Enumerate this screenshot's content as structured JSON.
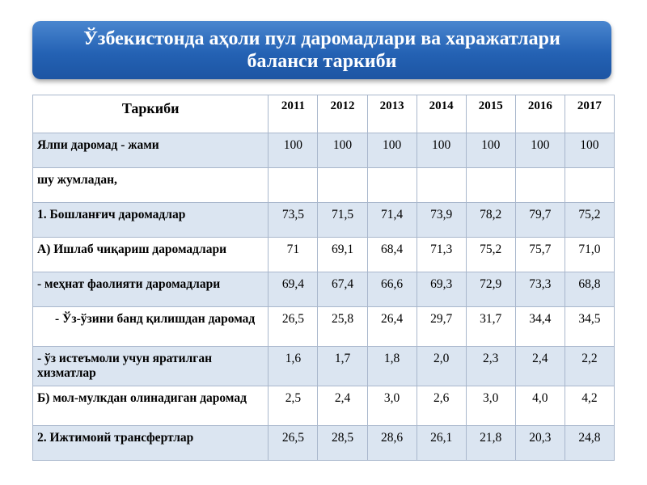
{
  "header": {
    "title": "Ўзбекистонда аҳоли пул даромадлари ва харажатлари баланси таркиби"
  },
  "table": {
    "columns": [
      "Таркиби",
      "2011",
      "2012",
      "2013",
      "2014",
      "2015",
      "2016",
      "2017"
    ],
    "rows": [
      {
        "label": "Ялпи даромад - жами",
        "values": [
          "100",
          "100",
          "100",
          "100",
          "100",
          "100",
          "100"
        ]
      },
      {
        "label": "шу жумладан,"
      },
      {
        "label": "1. Бошланғич даромадлар",
        "values": [
          "73,5",
          "71,5",
          "71,4",
          "73,9",
          "78,2",
          "79,7",
          "75,2"
        ]
      },
      {
        "label": "А) Ишлаб чиқариш даромадлари",
        "values": [
          "71",
          "69,1",
          "68,4",
          "71,3",
          "75,2",
          "75,7",
          "71,0"
        ]
      },
      {
        "label": "- меҳнат фаолияти даромадлари",
        "values": [
          "69,4",
          "67,4",
          "66,6",
          "69,3",
          "72,9",
          "73,3",
          "68,8"
        ]
      },
      {
        "label": "- Ўз-ўзини банд қилишдан даромад",
        "indent": true,
        "values": [
          "26,5",
          "25,8",
          "26,4",
          "29,7",
          "31,7",
          "34,4",
          "34,5"
        ]
      },
      {
        "label": "- ўз истеъмоли учун яратилган хизматлар",
        "values": [
          "1,6",
          "1,7",
          "1,8",
          "2,0",
          "2,3",
          "2,4",
          "2,2"
        ]
      },
      {
        "label": "Б) мол-мулкдан олинадиган даромад",
        "values": [
          "2,5",
          "2,4",
          "3,0",
          "2,6",
          "3,0",
          "4,0",
          "4,2"
        ]
      },
      {
        "label": "2. Ижтимоий трансфертлар",
        "values": [
          "26,5",
          "28,5",
          "28,6",
          "26,1",
          "21,8",
          "20,3",
          "24,8"
        ]
      }
    ]
  }
}
